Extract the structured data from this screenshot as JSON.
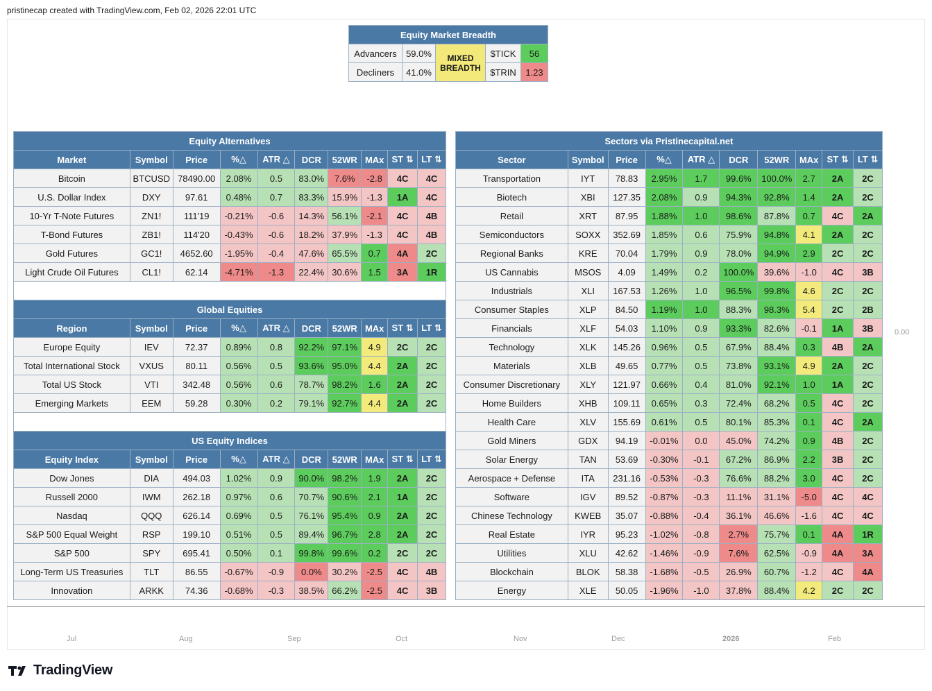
{
  "header": {
    "caption": "pristinecap created with TradingView.com, Feb 02, 2026 22:01 UTC"
  },
  "zero_label": "0.00",
  "axis": [
    "Jul",
    "Aug",
    "Sep",
    "Oct",
    "Nov",
    "Dec",
    "2026",
    "Feb"
  ],
  "brand": "TradingView",
  "breadth": {
    "title": "Equity Market Breadth",
    "advancers_label": "Advancers",
    "advancers_value": "59.0%",
    "decliners_label": "Decliners",
    "decliners_value": "41.0%",
    "status_line1": "MIXED",
    "status_line2": "BREADTH",
    "tick_label": "$TICK",
    "tick_value": "56",
    "trin_label": "$TRIN",
    "trin_value": "1.23"
  },
  "alternatives": {
    "title": "Equity Alternatives",
    "headers": [
      "Market",
      "Symbol",
      "Price",
      "%△",
      "ATR △",
      "DCR",
      "52WR",
      "MAx",
      "ST ⇅",
      "LT ⇅"
    ],
    "rows": [
      {
        "c": [
          "Bitcoin",
          "BTCUSD",
          "78490.00",
          "2.08%",
          "0.5",
          "83.0%",
          "7.6%",
          "-2.8",
          "4C",
          "4C"
        ],
        "k": [
          "n",
          "n",
          "n",
          "g1",
          "g1",
          "g1",
          "r2",
          "r2",
          "r1",
          "r1"
        ]
      },
      {
        "c": [
          "U.S. Dollar Index",
          "DXY",
          "97.61",
          "0.48%",
          "0.7",
          "83.3%",
          "15.9%",
          "-1.3",
          "1A",
          "4C"
        ],
        "k": [
          "n",
          "n",
          "n",
          "g1",
          "g1",
          "g1",
          "r1",
          "r1",
          "g2",
          "r1"
        ]
      },
      {
        "c": [
          "10-Yr T-Note Futures",
          "ZN1!",
          "111'19",
          "-0.21%",
          "-0.6",
          "14.3%",
          "56.1%",
          "-2.1",
          "4C",
          "4B"
        ],
        "k": [
          "n",
          "n",
          "n",
          "r1",
          "r1",
          "r1",
          "g1",
          "r2",
          "r1",
          "r1"
        ]
      },
      {
        "c": [
          "T-Bond Futures",
          "ZB1!",
          "114'20",
          "-0.43%",
          "-0.6",
          "18.2%",
          "37.9%",
          "-1.3",
          "4C",
          "4B"
        ],
        "k": [
          "n",
          "n",
          "n",
          "r1",
          "r1",
          "r1",
          "r1",
          "r1",
          "r1",
          "r1"
        ]
      },
      {
        "c": [
          "Gold Futures",
          "GC1!",
          "4652.60",
          "-1.95%",
          "-0.4",
          "47.6%",
          "65.5%",
          "0.7",
          "4A",
          "2C"
        ],
        "k": [
          "n",
          "n",
          "n",
          "r1",
          "r1",
          "r1",
          "g1",
          "g2",
          "r2",
          "g1"
        ]
      },
      {
        "c": [
          "Light Crude Oil Futures",
          "CL1!",
          "62.14",
          "-4.71%",
          "-1.3",
          "22.4%",
          "30.6%",
          "1.5",
          "3A",
          "1R"
        ],
        "k": [
          "n",
          "n",
          "n",
          "r2",
          "r2",
          "r1",
          "r1",
          "g2",
          "r2",
          "g2"
        ]
      }
    ]
  },
  "global": {
    "title": "Global Equities",
    "headers": [
      "Region",
      "Symbol",
      "Price",
      "%△",
      "ATR △",
      "DCR",
      "52WR",
      "MAx",
      "ST ⇅",
      "LT ⇅"
    ],
    "rows": [
      {
        "c": [
          "Europe Equity",
          "IEV",
          "72.37",
          "0.89%",
          "0.8",
          "92.2%",
          "97.1%",
          "4.9",
          "2C",
          "2C"
        ],
        "k": [
          "n",
          "n",
          "n",
          "g1",
          "g1",
          "g2",
          "g2",
          "y",
          "g1",
          "g1"
        ]
      },
      {
        "c": [
          "Total International Stock",
          "VXUS",
          "80.11",
          "0.56%",
          "0.5",
          "93.6%",
          "95.0%",
          "4.4",
          "2A",
          "2C"
        ],
        "k": [
          "n",
          "n",
          "n",
          "g1",
          "g1",
          "g2",
          "g2",
          "y",
          "g2",
          "g1"
        ]
      },
      {
        "c": [
          "Total US Stock",
          "VTI",
          "342.48",
          "0.56%",
          "0.6",
          "78.7%",
          "98.2%",
          "1.6",
          "2A",
          "2C"
        ],
        "k": [
          "n",
          "n",
          "n",
          "g1",
          "g1",
          "g1",
          "g2",
          "g2",
          "g2",
          "g1"
        ]
      },
      {
        "c": [
          "Emerging Markets",
          "EEM",
          "59.28",
          "0.30%",
          "0.2",
          "79.1%",
          "92.7%",
          "4.4",
          "2A",
          "2C"
        ],
        "k": [
          "n",
          "n",
          "n",
          "g1",
          "g1",
          "g1",
          "g2",
          "y",
          "g2",
          "g1"
        ]
      }
    ]
  },
  "us_indices": {
    "title": "US Equity Indices",
    "headers": [
      "Equity Index",
      "Symbol",
      "Price",
      "%△",
      "ATR △",
      "DCR",
      "52WR",
      "MAx",
      "ST ⇅",
      "LT ⇅"
    ],
    "rows": [
      {
        "c": [
          "Dow Jones",
          "DIA",
          "494.03",
          "1.02%",
          "0.9",
          "90.0%",
          "98.2%",
          "1.9",
          "2A",
          "2C"
        ],
        "k": [
          "n",
          "n",
          "n",
          "g1",
          "g1",
          "g2",
          "g2",
          "g2",
          "g2",
          "g1"
        ]
      },
      {
        "c": [
          "Russell 2000",
          "IWM",
          "262.18",
          "0.97%",
          "0.6",
          "70.7%",
          "90.6%",
          "2.1",
          "1A",
          "2C"
        ],
        "k": [
          "n",
          "n",
          "n",
          "g1",
          "g1",
          "g1",
          "g2",
          "g2",
          "g2",
          "g1"
        ]
      },
      {
        "c": [
          "Nasdaq",
          "QQQ",
          "626.14",
          "0.69%",
          "0.5",
          "76.1%",
          "95.4%",
          "0.9",
          "2A",
          "2C"
        ],
        "k": [
          "n",
          "n",
          "n",
          "g1",
          "g1",
          "g1",
          "g2",
          "g2",
          "g2",
          "g1"
        ]
      },
      {
        "c": [
          "S&P 500 Equal Weight",
          "RSP",
          "199.10",
          "0.51%",
          "0.5",
          "89.4%",
          "96.7%",
          "2.8",
          "2A",
          "2C"
        ],
        "k": [
          "n",
          "n",
          "n",
          "g1",
          "g1",
          "g1",
          "g2",
          "g2",
          "g2",
          "g1"
        ]
      },
      {
        "c": [
          "S&P 500",
          "SPY",
          "695.41",
          "0.50%",
          "0.1",
          "99.8%",
          "99.6%",
          "0.2",
          "2C",
          "2C"
        ],
        "k": [
          "n",
          "n",
          "n",
          "g1",
          "g1",
          "g2",
          "g2",
          "g2",
          "g1",
          "g1"
        ]
      },
      {
        "c": [
          "Long-Term US Treasuries",
          "TLT",
          "86.55",
          "-0.67%",
          "-0.9",
          "0.0%",
          "30.2%",
          "-2.5",
          "4C",
          "4B"
        ],
        "k": [
          "n",
          "n",
          "n",
          "r1",
          "r1",
          "r2",
          "r1",
          "r2",
          "r1",
          "r1"
        ]
      },
      {
        "c": [
          "Innovation",
          "ARKK",
          "74.36",
          "-0.68%",
          "-0.3",
          "38.5%",
          "66.2%",
          "-2.5",
          "4C",
          "3B"
        ],
        "k": [
          "n",
          "n",
          "n",
          "r1",
          "r1",
          "r1",
          "g1",
          "r2",
          "r1",
          "r1"
        ]
      }
    ]
  },
  "sectors": {
    "title": "Sectors via Pristinecapital.net",
    "headers": [
      "Sector",
      "Symbol",
      "Price",
      "%△",
      "ATR △",
      "DCR",
      "52WR",
      "MAx",
      "ST ⇅",
      "LT ⇅"
    ],
    "rows": [
      {
        "c": [
          "Transportation",
          "IYT",
          "78.83",
          "2.95%",
          "1.7",
          "99.6%",
          "100.0%",
          "2.7",
          "2A",
          "2C"
        ],
        "k": [
          "n",
          "n",
          "n",
          "g2",
          "g2",
          "g2",
          "g2",
          "g2",
          "g2",
          "g1"
        ]
      },
      {
        "c": [
          "Biotech",
          "XBI",
          "127.35",
          "2.08%",
          "0.9",
          "94.3%",
          "92.8%",
          "1.4",
          "2A",
          "2C"
        ],
        "k": [
          "n",
          "n",
          "n",
          "g2",
          "g1",
          "g2",
          "g2",
          "g2",
          "g2",
          "g1"
        ]
      },
      {
        "c": [
          "Retail",
          "XRT",
          "87.95",
          "1.88%",
          "1.0",
          "98.6%",
          "87.8%",
          "0.7",
          "4C",
          "2A"
        ],
        "k": [
          "n",
          "n",
          "n",
          "g2",
          "g2",
          "g2",
          "g1",
          "g2",
          "r1",
          "g2"
        ]
      },
      {
        "c": [
          "Semiconductors",
          "SOXX",
          "352.69",
          "1.85%",
          "0.6",
          "75.9%",
          "94.8%",
          "4.1",
          "2A",
          "2C"
        ],
        "k": [
          "n",
          "n",
          "n",
          "g1",
          "g1",
          "g1",
          "g2",
          "y",
          "g2",
          "g1"
        ]
      },
      {
        "c": [
          "Regional Banks",
          "KRE",
          "70.04",
          "1.79%",
          "0.9",
          "78.0%",
          "94.9%",
          "2.9",
          "2C",
          "2C"
        ],
        "k": [
          "n",
          "n",
          "n",
          "g1",
          "g1",
          "g1",
          "g2",
          "g2",
          "g1",
          "g1"
        ]
      },
      {
        "c": [
          "US Cannabis",
          "MSOS",
          "4.09",
          "1.49%",
          "0.2",
          "100.0%",
          "39.6%",
          "-1.0",
          "4C",
          "3B"
        ],
        "k": [
          "n",
          "n",
          "n",
          "g1",
          "g1",
          "g2",
          "r1",
          "r1",
          "r1",
          "r1"
        ]
      },
      {
        "c": [
          "Industrials",
          "XLI",
          "167.53",
          "1.26%",
          "1.0",
          "96.5%",
          "99.8%",
          "4.6",
          "2C",
          "2C"
        ],
        "k": [
          "n",
          "n",
          "n",
          "g1",
          "g1",
          "g2",
          "g2",
          "y",
          "g1",
          "g1"
        ]
      },
      {
        "c": [
          "Consumer Staples",
          "XLP",
          "84.50",
          "1.19%",
          "1.0",
          "88.3%",
          "98.3%",
          "5.4",
          "2C",
          "2B"
        ],
        "k": [
          "n",
          "n",
          "n",
          "g2",
          "g2",
          "g1",
          "g2",
          "y",
          "g1",
          "g1"
        ]
      },
      {
        "c": [
          "Financials",
          "XLF",
          "54.03",
          "1.10%",
          "0.9",
          "93.3%",
          "82.6%",
          "-0.1",
          "1A",
          "3B"
        ],
        "k": [
          "n",
          "n",
          "n",
          "g1",
          "g1",
          "g2",
          "g1",
          "r1",
          "g2",
          "r1"
        ]
      },
      {
        "c": [
          "Technology",
          "XLK",
          "145.26",
          "0.96%",
          "0.5",
          "67.9%",
          "88.4%",
          "0.3",
          "4B",
          "2A"
        ],
        "k": [
          "n",
          "n",
          "n",
          "g1",
          "g1",
          "g1",
          "g1",
          "g2",
          "r1",
          "g2"
        ]
      },
      {
        "c": [
          "Materials",
          "XLB",
          "49.65",
          "0.77%",
          "0.5",
          "73.8%",
          "93.1%",
          "4.9",
          "2A",
          "2C"
        ],
        "k": [
          "n",
          "n",
          "n",
          "g1",
          "g1",
          "g1",
          "g2",
          "y",
          "g2",
          "g1"
        ]
      },
      {
        "c": [
          "Consumer Discretionary",
          "XLY",
          "121.97",
          "0.66%",
          "0.4",
          "81.0%",
          "92.1%",
          "1.0",
          "1A",
          "2C"
        ],
        "k": [
          "n",
          "n",
          "n",
          "g1",
          "g1",
          "g1",
          "g2",
          "g2",
          "g2",
          "g1"
        ]
      },
      {
        "c": [
          "Home Builders",
          "XHB",
          "109.11",
          "0.65%",
          "0.3",
          "72.4%",
          "68.2%",
          "0.5",
          "4C",
          "2C"
        ],
        "k": [
          "n",
          "n",
          "n",
          "g1",
          "g1",
          "g1",
          "g1",
          "g2",
          "r1",
          "g1"
        ]
      },
      {
        "c": [
          "Health Care",
          "XLV",
          "155.69",
          "0.61%",
          "0.5",
          "80.1%",
          "85.3%",
          "0.1",
          "4C",
          "2A"
        ],
        "k": [
          "n",
          "n",
          "n",
          "g1",
          "g1",
          "g1",
          "g1",
          "g2",
          "r1",
          "g2"
        ]
      },
      {
        "c": [
          "Gold Miners",
          "GDX",
          "94.19",
          "-0.01%",
          "0.0",
          "45.0%",
          "74.2%",
          "0.9",
          "4B",
          "2C"
        ],
        "k": [
          "n",
          "n",
          "n",
          "r1",
          "r1",
          "r1",
          "g1",
          "g2",
          "r1",
          "g1"
        ]
      },
      {
        "c": [
          "Solar Energy",
          "TAN",
          "53.69",
          "-0.30%",
          "-0.1",
          "67.2%",
          "86.9%",
          "2.2",
          "3B",
          "2C"
        ],
        "k": [
          "n",
          "n",
          "n",
          "r1",
          "r1",
          "g1",
          "g1",
          "g2",
          "r1",
          "g1"
        ]
      },
      {
        "c": [
          "Aerospace + Defense",
          "ITA",
          "231.16",
          "-0.53%",
          "-0.3",
          "76.6%",
          "88.2%",
          "3.0",
          "4C",
          "2C"
        ],
        "k": [
          "n",
          "n",
          "n",
          "r1",
          "r1",
          "g1",
          "g1",
          "g2",
          "r1",
          "g1"
        ]
      },
      {
        "c": [
          "Software",
          "IGV",
          "89.52",
          "-0.87%",
          "-0.3",
          "11.1%",
          "31.1%",
          "-5.0",
          "4C",
          "4C"
        ],
        "k": [
          "n",
          "n",
          "n",
          "r1",
          "r1",
          "r1",
          "r1",
          "r2",
          "r1",
          "r1"
        ]
      },
      {
        "c": [
          "Chinese Technology",
          "KWEB",
          "35.07",
          "-0.88%",
          "-0.4",
          "36.1%",
          "46.6%",
          "-1.6",
          "4C",
          "4C"
        ],
        "k": [
          "n",
          "n",
          "n",
          "r1",
          "r1",
          "r1",
          "r1",
          "r1",
          "r1",
          "r1"
        ]
      },
      {
        "c": [
          "Real Estate",
          "IYR",
          "95.23",
          "-1.02%",
          "-0.8",
          "2.7%",
          "75.7%",
          "0.1",
          "4A",
          "1R"
        ],
        "k": [
          "n",
          "n",
          "n",
          "r1",
          "r1",
          "r2",
          "g1",
          "g2",
          "r2",
          "g2"
        ]
      },
      {
        "c": [
          "Utilities",
          "XLU",
          "42.62",
          "-1.46%",
          "-0.9",
          "7.6%",
          "62.5%",
          "-0.9",
          "4A",
          "3A"
        ],
        "k": [
          "n",
          "n",
          "n",
          "r1",
          "r1",
          "r2",
          "g1",
          "r1",
          "r2",
          "r2"
        ]
      },
      {
        "c": [
          "Blockchain",
          "BLOK",
          "58.38",
          "-1.68%",
          "-0.5",
          "26.9%",
          "60.7%",
          "-1.2",
          "4C",
          "4A"
        ],
        "k": [
          "n",
          "n",
          "n",
          "r1",
          "r1",
          "r1",
          "g1",
          "r1",
          "r1",
          "r2"
        ]
      },
      {
        "c": [
          "Energy",
          "XLE",
          "50.05",
          "-1.96%",
          "-1.0",
          "37.8%",
          "88.4%",
          "4.2",
          "2C",
          "2C"
        ],
        "k": [
          "n",
          "n",
          "n",
          "r1",
          "r1",
          "r1",
          "g1",
          "y",
          "g1",
          "g1"
        ]
      }
    ]
  }
}
